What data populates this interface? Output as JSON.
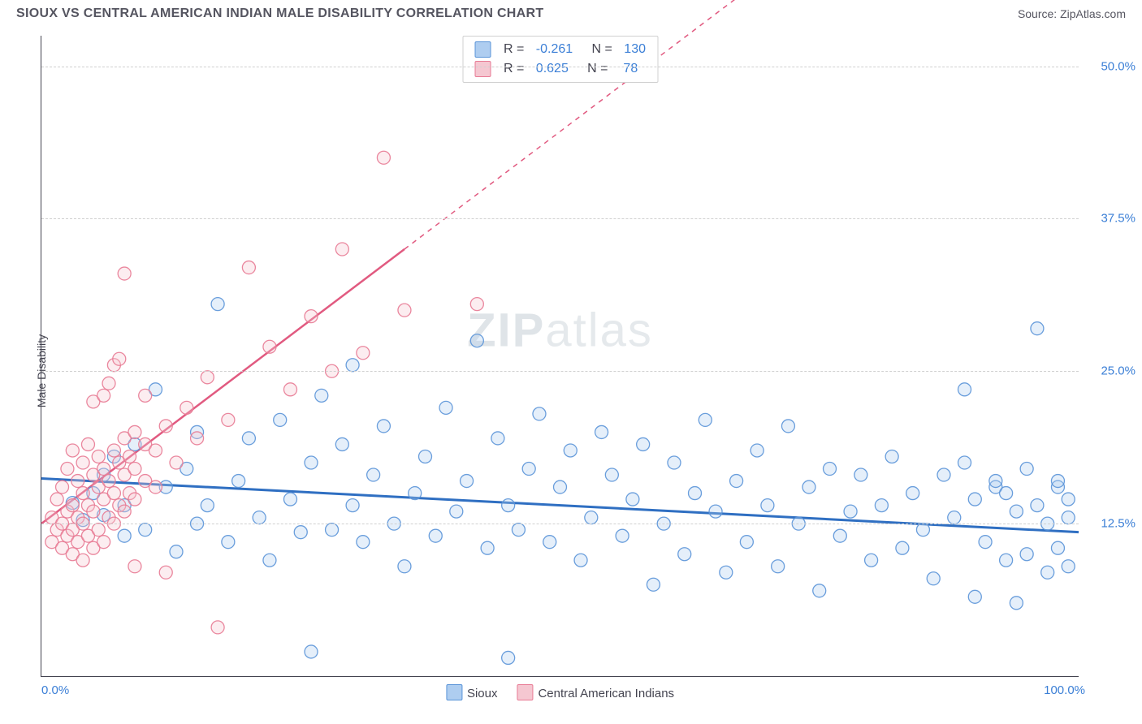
{
  "title": "SIOUX VS CENTRAL AMERICAN INDIAN MALE DISABILITY CORRELATION CHART",
  "source_label": "Source: ",
  "source_name": "ZipAtlas.com",
  "ylabel": "Male Disability",
  "watermark_bold": "ZIP",
  "watermark_rest": "atlas",
  "chart": {
    "type": "scatter",
    "xlim": [
      0,
      100
    ],
    "ylim": [
      0,
      52.5
    ],
    "yticks": [
      {
        "v": 12.5,
        "label": "12.5%"
      },
      {
        "v": 25.0,
        "label": "25.0%"
      },
      {
        "v": 37.5,
        "label": "37.5%"
      },
      {
        "v": 50.0,
        "label": "50.0%"
      }
    ],
    "xticks": [
      {
        "v": 0,
        "label": "0.0%",
        "align": "left"
      },
      {
        "v": 100,
        "label": "100.0%",
        "align": "right"
      }
    ],
    "grid_color": "#d0d0d0",
    "background_color": "#ffffff",
    "axis_color": "#444450",
    "marker_radius": 8,
    "series": [
      {
        "name": "Sioux",
        "fill": "#aecdf0",
        "stroke": "#5a94d8",
        "R": "-0.261",
        "N": "130",
        "trend": {
          "x1": 0,
          "y1": 16.2,
          "x2": 100,
          "y2": 11.8,
          "color": "#2f6fc2",
          "width": 3,
          "dash": false
        },
        "points": [
          [
            3,
            14.2
          ],
          [
            4,
            12.8
          ],
          [
            5,
            15.0
          ],
          [
            6,
            16.5
          ],
          [
            6,
            13.2
          ],
          [
            7,
            18.0
          ],
          [
            8,
            14.0
          ],
          [
            8,
            11.5
          ],
          [
            9,
            19.0
          ],
          [
            10,
            12.0
          ],
          [
            11,
            23.5
          ],
          [
            12,
            15.5
          ],
          [
            13,
            10.2
          ],
          [
            14,
            17.0
          ],
          [
            15,
            20.0
          ],
          [
            15,
            12.5
          ],
          [
            16,
            14.0
          ],
          [
            17,
            30.5
          ],
          [
            18,
            11.0
          ],
          [
            19,
            16.0
          ],
          [
            20,
            19.5
          ],
          [
            21,
            13.0
          ],
          [
            22,
            9.5
          ],
          [
            23,
            21.0
          ],
          [
            24,
            14.5
          ],
          [
            25,
            11.8
          ],
          [
            26,
            17.5
          ],
          [
            26,
            2.0
          ],
          [
            27,
            23.0
          ],
          [
            28,
            12.0
          ],
          [
            29,
            19.0
          ],
          [
            30,
            25.5
          ],
          [
            30,
            14.0
          ],
          [
            31,
            11.0
          ],
          [
            32,
            16.5
          ],
          [
            33,
            20.5
          ],
          [
            34,
            12.5
          ],
          [
            35,
            9.0
          ],
          [
            36,
            15.0
          ],
          [
            37,
            18.0
          ],
          [
            38,
            11.5
          ],
          [
            39,
            22.0
          ],
          [
            40,
            13.5
          ],
          [
            41,
            16.0
          ],
          [
            42,
            27.5
          ],
          [
            43,
            10.5
          ],
          [
            44,
            19.5
          ],
          [
            45,
            14.0
          ],
          [
            45,
            1.5
          ],
          [
            46,
            12.0
          ],
          [
            47,
            17.0
          ],
          [
            48,
            21.5
          ],
          [
            49,
            11.0
          ],
          [
            50,
            15.5
          ],
          [
            51,
            18.5
          ],
          [
            52,
            9.5
          ],
          [
            53,
            13.0
          ],
          [
            54,
            20.0
          ],
          [
            55,
            16.5
          ],
          [
            56,
            11.5
          ],
          [
            57,
            14.5
          ],
          [
            58,
            19.0
          ],
          [
            59,
            7.5
          ],
          [
            60,
            12.5
          ],
          [
            61,
            17.5
          ],
          [
            62,
            10.0
          ],
          [
            63,
            15.0
          ],
          [
            64,
            21.0
          ],
          [
            65,
            13.5
          ],
          [
            66,
            8.5
          ],
          [
            67,
            16.0
          ],
          [
            68,
            11.0
          ],
          [
            69,
            18.5
          ],
          [
            70,
            14.0
          ],
          [
            71,
            9.0
          ],
          [
            72,
            20.5
          ],
          [
            73,
            12.5
          ],
          [
            74,
            15.5
          ],
          [
            75,
            7.0
          ],
          [
            76,
            17.0
          ],
          [
            77,
            11.5
          ],
          [
            78,
            13.5
          ],
          [
            79,
            16.5
          ],
          [
            80,
            9.5
          ],
          [
            81,
            14.0
          ],
          [
            82,
            18.0
          ],
          [
            83,
            10.5
          ],
          [
            84,
            15.0
          ],
          [
            85,
            12.0
          ],
          [
            86,
            8.0
          ],
          [
            87,
            16.5
          ],
          [
            88,
            13.0
          ],
          [
            89,
            17.5
          ],
          [
            89,
            23.5
          ],
          [
            90,
            6.5
          ],
          [
            90,
            14.5
          ],
          [
            91,
            11.0
          ],
          [
            92,
            15.5
          ],
          [
            92,
            16.0
          ],
          [
            93,
            9.5
          ],
          [
            93,
            15.0
          ],
          [
            94,
            13.5
          ],
          [
            94,
            6.0
          ],
          [
            95,
            17.0
          ],
          [
            95,
            10.0
          ],
          [
            96,
            14.0
          ],
          [
            96,
            28.5
          ],
          [
            97,
            8.5
          ],
          [
            97,
            12.5
          ],
          [
            98,
            15.5
          ],
          [
            98,
            16.0
          ],
          [
            98,
            10.5
          ],
          [
            99,
            13.0
          ],
          [
            99,
            9.0
          ],
          [
            99,
            14.5
          ]
        ]
      },
      {
        "name": "Central American Indians",
        "fill": "#f5c7d1",
        "stroke": "#e87a94",
        "R": "0.625",
        "N": "78",
        "trend": {
          "x1": 0,
          "y1": 12.5,
          "x2": 35,
          "y2": 35.0,
          "color": "#e15a80",
          "width": 2.5,
          "dash": false,
          "ext_x2": 70,
          "ext_y2": 57.5
        },
        "points": [
          [
            1,
            11.0
          ],
          [
            1,
            13.0
          ],
          [
            1.5,
            12.0
          ],
          [
            1.5,
            14.5
          ],
          [
            2,
            10.5
          ],
          [
            2,
            12.5
          ],
          [
            2,
            15.5
          ],
          [
            2.5,
            11.5
          ],
          [
            2.5,
            13.5
          ],
          [
            2.5,
            17.0
          ],
          [
            3,
            10.0
          ],
          [
            3,
            12.0
          ],
          [
            3,
            14.0
          ],
          [
            3,
            18.5
          ],
          [
            3.5,
            11.0
          ],
          [
            3.5,
            13.0
          ],
          [
            3.5,
            16.0
          ],
          [
            4,
            9.5
          ],
          [
            4,
            12.5
          ],
          [
            4,
            15.0
          ],
          [
            4,
            17.5
          ],
          [
            4.5,
            11.5
          ],
          [
            4.5,
            14.0
          ],
          [
            4.5,
            19.0
          ],
          [
            5,
            10.5
          ],
          [
            5,
            13.5
          ],
          [
            5,
            16.5
          ],
          [
            5,
            22.5
          ],
          [
            5.5,
            12.0
          ],
          [
            5.5,
            15.5
          ],
          [
            5.5,
            18.0
          ],
          [
            6,
            11.0
          ],
          [
            6,
            14.5
          ],
          [
            6,
            17.0
          ],
          [
            6,
            23.0
          ],
          [
            6.5,
            13.0
          ],
          [
            6.5,
            16.0
          ],
          [
            6.5,
            24.0
          ],
          [
            7,
            12.5
          ],
          [
            7,
            15.0
          ],
          [
            7,
            18.5
          ],
          [
            7,
            25.5
          ],
          [
            7.5,
            14.0
          ],
          [
            7.5,
            17.5
          ],
          [
            7.5,
            26.0
          ],
          [
            8,
            13.5
          ],
          [
            8,
            16.5
          ],
          [
            8,
            19.5
          ],
          [
            8,
            33.0
          ],
          [
            8.5,
            15.0
          ],
          [
            8.5,
            18.0
          ],
          [
            9,
            9.0
          ],
          [
            9,
            14.5
          ],
          [
            9,
            17.0
          ],
          [
            9,
            20.0
          ],
          [
            10,
            16.0
          ],
          [
            10,
            19.0
          ],
          [
            10,
            23.0
          ],
          [
            11,
            15.5
          ],
          [
            11,
            18.5
          ],
          [
            12,
            8.5
          ],
          [
            12,
            20.5
          ],
          [
            13,
            17.5
          ],
          [
            14,
            22.0
          ],
          [
            15,
            19.5
          ],
          [
            16,
            24.5
          ],
          [
            17,
            4.0
          ],
          [
            18,
            21.0
          ],
          [
            20,
            33.5
          ],
          [
            22,
            27.0
          ],
          [
            24,
            23.5
          ],
          [
            26,
            29.5
          ],
          [
            28,
            25.0
          ],
          [
            29,
            35.0
          ],
          [
            31,
            26.5
          ],
          [
            33,
            42.5
          ],
          [
            35,
            30.0
          ],
          [
            42,
            30.5
          ]
        ]
      }
    ]
  },
  "legend": {
    "items": [
      {
        "label": "Sioux",
        "fill": "#aecdf0",
        "stroke": "#5a94d8"
      },
      {
        "label": "Central American Indians",
        "fill": "#f5c7d1",
        "stroke": "#e87a94"
      }
    ]
  }
}
